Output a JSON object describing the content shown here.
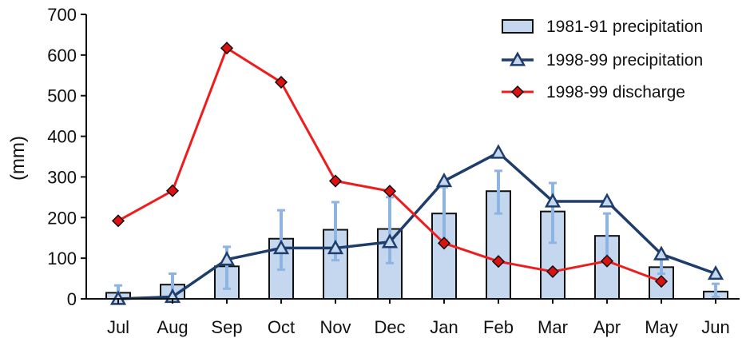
{
  "chart_data": {
    "type": "bar",
    "title": "",
    "xlabel": "",
    "ylabel": "(mm)",
    "ylim": [
      0,
      700
    ],
    "yticks": [
      0,
      100,
      200,
      300,
      400,
      500,
      600,
      700
    ],
    "grid": false,
    "legend_position": "top-right",
    "categories": [
      "Jul",
      "Aug",
      "Sep",
      "Oct",
      "Nov",
      "Dec",
      "Jan",
      "Feb",
      "Mar",
      "Apr",
      "May",
      "Jun"
    ],
    "series": [
      {
        "name": "1981-91 precipitation",
        "kind": "bar",
        "values": [
          15,
          35,
          80,
          148,
          170,
          172,
          210,
          265,
          215,
          155,
          78,
          18
        ],
        "error_low": [
          0,
          0,
          25,
          72,
          95,
          88,
          145,
          210,
          138,
          100,
          62,
          5
        ],
        "error_high": [
          33,
          62,
          128,
          218,
          238,
          250,
          275,
          315,
          285,
          210,
          97,
          37
        ],
        "color": "#c5d6ef",
        "edge_color": "#111111",
        "error_color": "#8db4e2"
      },
      {
        "name": "1998-99 precipitation",
        "kind": "line",
        "marker": "triangle",
        "values": [
          0,
          5,
          97,
          125,
          125,
          140,
          290,
          360,
          240,
          240,
          110,
          62
        ],
        "color": "#1f3d6b"
      },
      {
        "name": "1998-99 discharge",
        "kind": "line",
        "marker": "diamond",
        "values": [
          192,
          266,
          617,
          533,
          290,
          265,
          137,
          92,
          67,
          93,
          43,
          null
        ],
        "color": "#ee1c1c",
        "marker_color": "#dd1111"
      }
    ]
  }
}
